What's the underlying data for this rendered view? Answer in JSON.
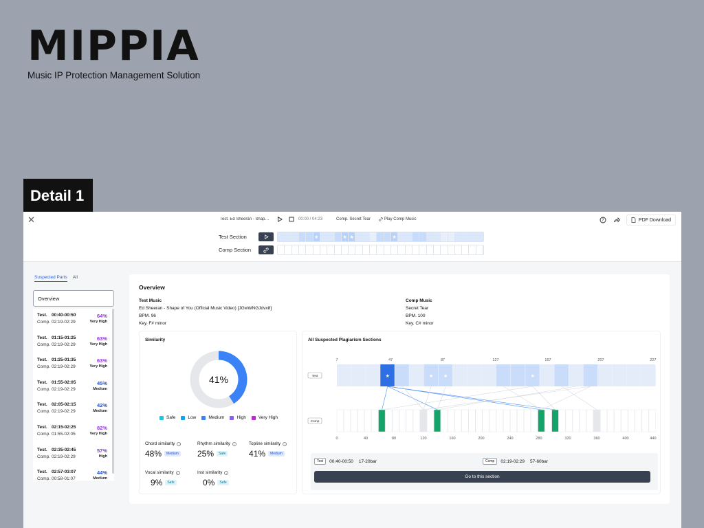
{
  "brand": {
    "logo": "MIPPIA",
    "tagline": "Music IP Protection Management Solution"
  },
  "detail_label": "Detail 1",
  "topbar": {
    "test_title": "Test. Ed Sheeran - Shape ...",
    "time": "00:00 / 04:23",
    "comp_title": "Comp. Secret Tear",
    "play_comp": "Play Comp Music",
    "pdf": "PDF Download"
  },
  "sections": {
    "test_label": "Test Section",
    "comp_label": "Comp Section",
    "test_strip": [
      "",
      "",
      "",
      "",
      "",
      "★",
      "",
      "",
      "",
      "★",
      "★",
      "",
      "",
      "",
      "",
      "",
      "★",
      "",
      "",
      "",
      "",
      "",
      "",
      "",
      "",
      "",
      "",
      "",
      ""
    ],
    "comp_strip_count": 29
  },
  "sidebar": {
    "tab_suspected": "Suspected Parts",
    "tab_all": "All",
    "overview": "Overview",
    "items": [
      {
        "test_key": "Test.",
        "test": "00:40-00:50",
        "comp_key": "Comp.",
        "comp": "02:19-02:29",
        "pct": "64%",
        "level": "Very High",
        "color": "#9333ea"
      },
      {
        "test_key": "Test.",
        "test": "01:15-01:25",
        "comp_key": "Comp.",
        "comp": "02:19-02:29",
        "pct": "63%",
        "level": "Very High",
        "color": "#9333ea"
      },
      {
        "test_key": "Test.",
        "test": "01:25-01:35",
        "comp_key": "Comp.",
        "comp": "02:19-02:29",
        "pct": "63%",
        "level": "Very High",
        "color": "#9333ea"
      },
      {
        "test_key": "Test.",
        "test": "01:55-02:05",
        "comp_key": "Comp.",
        "comp": "02:19-02:29",
        "pct": "45%",
        "level": "Medium",
        "color": "#1d4ed8"
      },
      {
        "test_key": "Test.",
        "test": "02:05-02:15",
        "comp_key": "Comp.",
        "comp": "02:19-02:29",
        "pct": "42%",
        "level": "Medium",
        "color": "#1d4ed8"
      },
      {
        "test_key": "Test.",
        "test": "02:15-02:25",
        "comp_key": "Comp.",
        "comp": "01:55-02:05",
        "pct": "82%",
        "level": "Very High",
        "color": "#9333ea"
      },
      {
        "test_key": "Test.",
        "test": "02:35-02:45",
        "comp_key": "Comp.",
        "comp": "02:19-02:29",
        "pct": "57%",
        "level": "High",
        "color": "#7c3aed"
      },
      {
        "test_key": "Test.",
        "test": "02:57-03:07",
        "comp_key": "Comp.",
        "comp": "00:58-01:07",
        "pct": "44%",
        "level": "Medium",
        "color": "#1d4ed8"
      }
    ]
  },
  "overview": {
    "title": "Overview",
    "test_music": {
      "heading": "Test Music",
      "title": "Ed Sheeran - Shape of You (Official Music Video) [JGwWNGJdvx8]",
      "bpm": "BPM. 96",
      "key": "Key. F# minor"
    },
    "comp_music": {
      "heading": "Comp Music",
      "title": "Secret Tear",
      "bpm": "BPM. 100",
      "key": "Key. C# minor"
    }
  },
  "similarity": {
    "title": "Similarity",
    "overall": "41%",
    "overall_value": 41,
    "legend": [
      {
        "label": "Safe",
        "color": "#22c4dd"
      },
      {
        "label": "Low",
        "color": "#0ea5e9"
      },
      {
        "label": "Medium",
        "color": "#3b82f6"
      },
      {
        "label": "High",
        "color": "#8b5cf6"
      },
      {
        "label": "Very High",
        "color": "#c026d3"
      }
    ],
    "metrics": [
      {
        "label": "Chord similarity",
        "value": "48%",
        "badge": "Medium"
      },
      {
        "label": "Rhythm similarity",
        "value": "25%",
        "badge": "Safe"
      },
      {
        "label": "Topline similarity",
        "value": "41%",
        "badge": "Medium"
      },
      {
        "label": "Vocal similarity",
        "value": "9%",
        "badge": "Safe"
      },
      {
        "label": "Inst similarity",
        "value": "0%",
        "badge": "Safe"
      }
    ]
  },
  "plagiarism": {
    "title": "All Suspected Plagiarism Sections",
    "test_tag": "Test",
    "comp_tag": "Comp",
    "top_ticks": [
      "7",
      "47",
      "87",
      "127",
      "167",
      "207",
      "227"
    ],
    "bottom_ticks": [
      "0",
      "40",
      "80",
      "120",
      "160",
      "200",
      "240",
      "280",
      "320",
      "360",
      "400",
      "440"
    ],
    "detail": {
      "test_tag": "Test",
      "test_time": "00:40-00:50",
      "test_bar": "17-20bar",
      "comp_tag": "Comp",
      "comp_time": "02:19-02:29",
      "comp_bar": "57-60bar",
      "go": "Go to this section"
    }
  }
}
